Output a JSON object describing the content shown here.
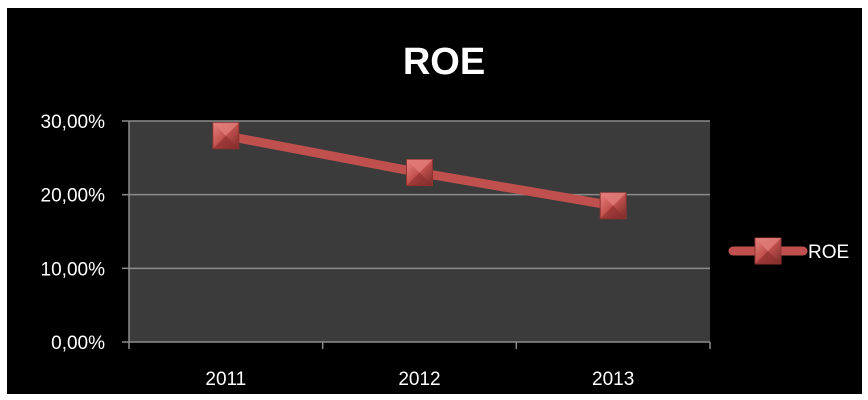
{
  "chart_data": {
    "type": "line",
    "title": "ROE",
    "categories": [
      "2011",
      "2012",
      "2013"
    ],
    "series": [
      {
        "name": "ROE",
        "values": [
          0.28,
          0.23,
          0.185
        ],
        "color": "#c0504d"
      }
    ],
    "ylim": [
      0,
      0.3
    ],
    "y_ticks": [
      0,
      0.1,
      0.2,
      0.3
    ],
    "y_tick_labels": [
      "0,00%",
      "10,00%",
      "20,00%",
      "30,00%"
    ],
    "grid": true,
    "legend_position": "right",
    "colors": {
      "background": "#000000",
      "plot_area": "#3b3b3b",
      "gridline": "#8c8c8c",
      "text": "#ffffff",
      "series": "#c0504d"
    }
  }
}
